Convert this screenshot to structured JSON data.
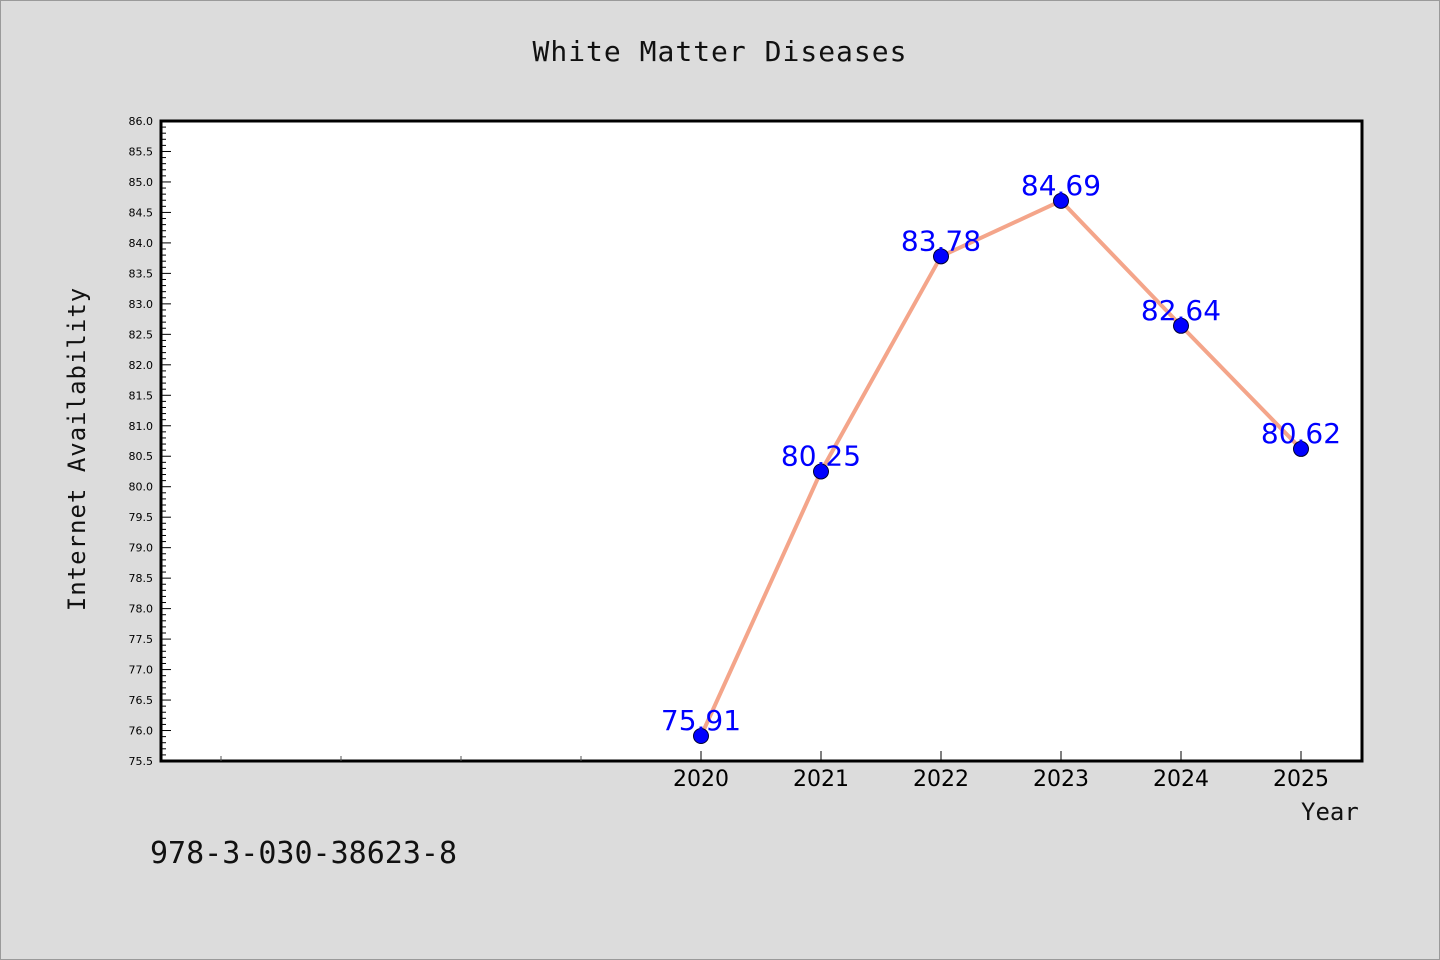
{
  "chart_data": {
    "type": "line",
    "title": "White Matter Diseases",
    "xlabel": "Year",
    "ylabel": "Internet Availability",
    "x": [
      "2020",
      "2021",
      "2022",
      "2023",
      "2024",
      "2025"
    ],
    "series": [
      {
        "values": [
          75.91,
          80.25,
          83.78,
          84.69,
          82.64,
          80.62
        ]
      }
    ],
    "data_labels": [
      "75.91",
      "80.25",
      "83.78",
      "84.69",
      "82.64",
      "80.62"
    ],
    "ylim": [
      75.5,
      86.0
    ],
    "y_ticks": [
      "75.5",
      "76.0",
      "76.5",
      "77.0",
      "77.5",
      "78.0",
      "78.5",
      "79.0",
      "79.5",
      "80.0",
      "80.5",
      "81.0",
      "81.5",
      "82.0",
      "82.5",
      "83.0",
      "83.5",
      "84.0",
      "84.5",
      "85.0",
      "85.5",
      "86.0"
    ],
    "grid": false,
    "colors": {
      "line": "#f4a58a",
      "marker": "#0000ff",
      "label": "#0000ff"
    }
  },
  "footer_text": "978-3-030-38623-8"
}
